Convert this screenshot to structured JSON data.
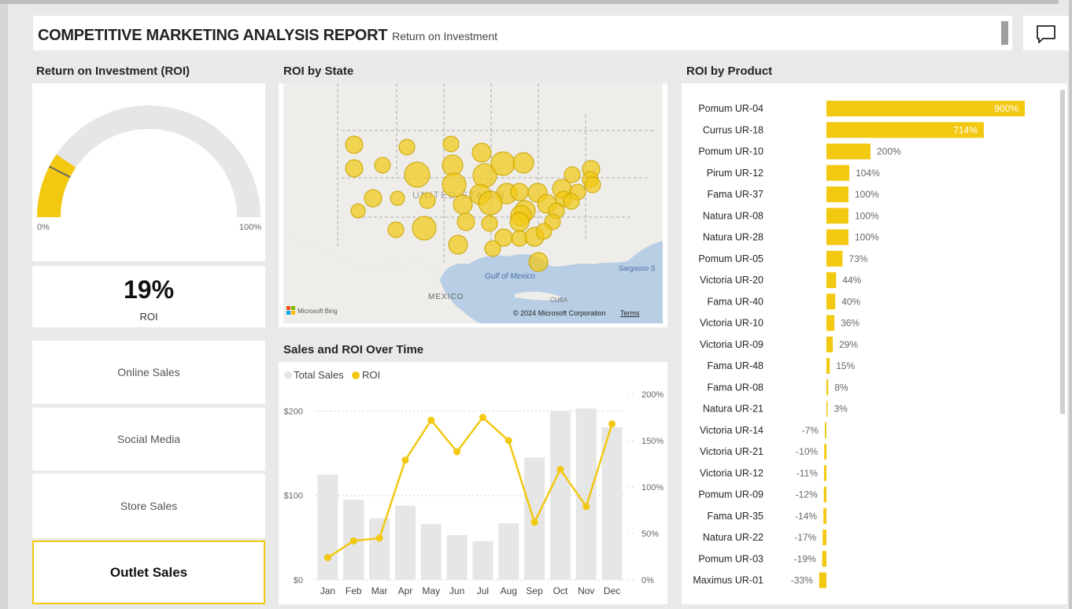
{
  "header": {
    "title": "COMPETITIVE MARKETING ANALYSIS REPORT",
    "subtitle": "Return on Investment"
  },
  "icons": {
    "comment": "comment-icon"
  },
  "gauge": {
    "title": "Return on Investment (ROI)",
    "value": 19,
    "min_label": "0%",
    "max_label": "100%",
    "target_percent": 15,
    "fill_color": "#F2C811",
    "track_color": "#E6E6E6"
  },
  "kpi": {
    "value": "19%",
    "label": "ROI"
  },
  "channels": [
    {
      "label": "Online Sales",
      "active": false
    },
    {
      "label": "Social Media",
      "active": false
    },
    {
      "label": "Store Sales",
      "active": false
    },
    {
      "label": "Outlet Sales",
      "active": true
    }
  ],
  "map": {
    "title": "ROI by State",
    "labels": {
      "country": "UNITED STATES",
      "mexico": "MEXICO",
      "gulf": "Gulf of Mexico",
      "cuba": "CUBA",
      "sargasso": "Sargasso S"
    },
    "attribution": "© 2024 Microsoft Corporation",
    "terms": "Terms",
    "bing": "Microsoft Bing"
  },
  "chart_data": [
    {
      "type": "bar+line",
      "title": "Sales and ROI Over Time",
      "legend": [
        "Total Sales",
        "ROI"
      ],
      "legend_position": "top-left",
      "categories": [
        "Jan",
        "Feb",
        "Mar",
        "Apr",
        "May",
        "Jun",
        "Jul",
        "Aug",
        "Sep",
        "Oct",
        "Nov",
        "Dec"
      ],
      "series": [
        {
          "name": "Total Sales",
          "type": "bar",
          "axis": "left",
          "color": "#E6E6E6",
          "values": [
            125,
            95,
            73,
            88,
            66,
            53,
            46,
            67,
            145,
            200,
            203,
            181
          ]
        },
        {
          "name": "ROI",
          "type": "line",
          "axis": "right",
          "color": "#F2C811",
          "values": [
            24,
            42,
            45,
            129,
            172,
            138,
            175,
            150,
            62,
            119,
            79,
            168
          ]
        }
      ],
      "y_left": {
        "ticks": [
          "$0",
          "$100",
          "$200"
        ],
        "tick_values": [
          0,
          100,
          200
        ],
        "range": [
          0,
          220
        ]
      },
      "y_right": {
        "ticks": [
          "0%",
          "50%",
          "100%",
          "150%",
          "200%"
        ],
        "tick_values": [
          0,
          50,
          100,
          150,
          200
        ],
        "range": [
          0,
          200
        ]
      },
      "grid": true
    },
    {
      "type": "bar",
      "orientation": "horizontal",
      "title": "ROI by Product",
      "color": "#F2C811",
      "categories": [
        "Pomum UR-04",
        "Currus UR-18",
        "Pomum UR-10",
        "Pirum UR-12",
        "Fama UR-37",
        "Natura UR-08",
        "Natura UR-28",
        "Pomum UR-05",
        "Victoria UR-20",
        "Fama UR-40",
        "Victoria UR-10",
        "Victoria UR-09",
        "Fama UR-48",
        "Fama UR-08",
        "Natura UR-21",
        "Victoria UR-14",
        "Victoria UR-21",
        "Victoria UR-12",
        "Pomum UR-09",
        "Fama UR-35",
        "Natura UR-22",
        "Pomum UR-03",
        "Maximus UR-01"
      ],
      "values": [
        900,
        714,
        200,
        104,
        100,
        100,
        100,
        73,
        44,
        40,
        36,
        29,
        15,
        8,
        3,
        -7,
        -10,
        -11,
        -12,
        -14,
        -17,
        -19,
        -33
      ],
      "labels": [
        "900%",
        "714%",
        "200%",
        "104%",
        "100%",
        "100%",
        "100%",
        "73%",
        "44%",
        "40%",
        "36%",
        "29%",
        "15%",
        "8%",
        "3%",
        "-7%",
        "-10%",
        "-11%",
        "-12%",
        "-14%",
        "-17%",
        "-19%",
        "-33%"
      ]
    }
  ]
}
